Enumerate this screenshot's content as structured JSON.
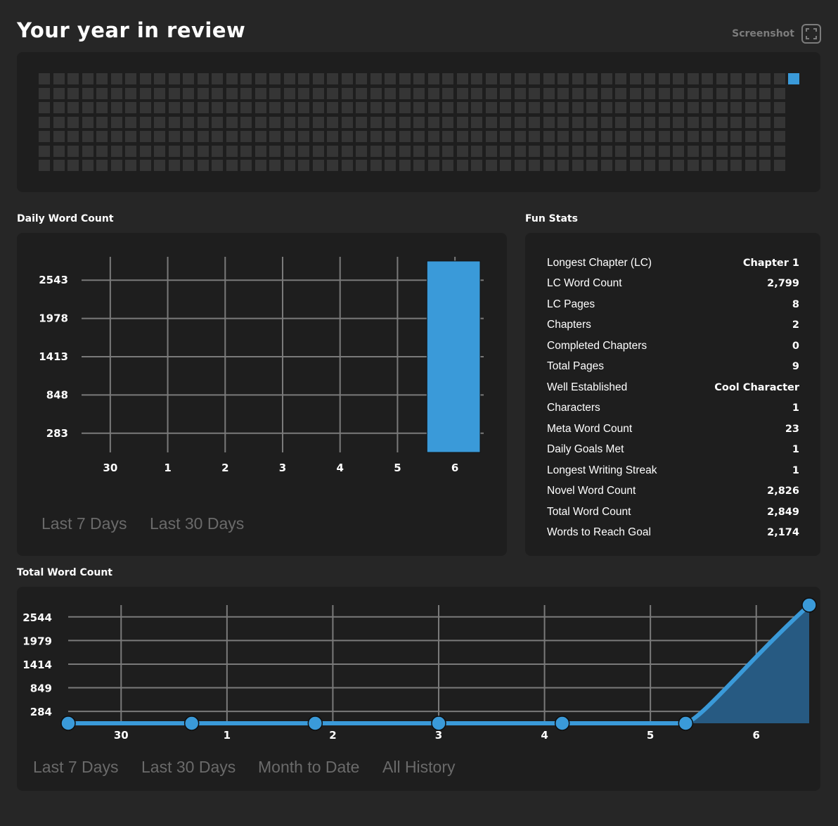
{
  "page": {
    "title": "Your year in review",
    "screenshot_label": "Screenshot",
    "icons": {
      "screenshot": "screenshot-frame-icon"
    }
  },
  "heatmap": {
    "weeks": 53,
    "days_per_week": 7,
    "active_cells": [
      {
        "week": 52,
        "day": 0
      }
    ],
    "colors": {
      "empty": "#353535",
      "active": "#3a9ad9"
    }
  },
  "daily": {
    "label": "Daily Word Count",
    "range_buttons": [
      "Last 7 Days",
      "Last 30 Days"
    ]
  },
  "fun_stats": {
    "label": "Fun Stats",
    "rows": [
      {
        "label": "Longest Chapter (LC)",
        "value": "Chapter 1"
      },
      {
        "label": "LC Word Count",
        "value": "2,799"
      },
      {
        "label": "LC Pages",
        "value": "8"
      },
      {
        "label": "Chapters",
        "value": "2"
      },
      {
        "label": "Completed Chapters",
        "value": "0"
      },
      {
        "label": "Total Pages",
        "value": "9"
      },
      {
        "label": "Well Established",
        "value": "Cool Character"
      },
      {
        "label": "Characters",
        "value": "1"
      },
      {
        "label": "Meta Word Count",
        "value": "23"
      },
      {
        "label": "Daily Goals Met",
        "value": "1"
      },
      {
        "label": "Longest Writing Streak",
        "value": "1"
      },
      {
        "label": "Novel Word Count",
        "value": "2,826"
      },
      {
        "label": "Total Word Count",
        "value": "2,849"
      },
      {
        "label": "Words to Reach Goal",
        "value": "2,174"
      }
    ]
  },
  "total": {
    "label": "Total Word Count",
    "range_buttons": [
      "Last 7 Days",
      "Last 30 Days",
      "Month to Date",
      "All History"
    ]
  },
  "colors": {
    "accent": "#3a9ad9",
    "area_fill": "#275a82",
    "grid": "#7a7a7a",
    "muted": "#6a6a6a"
  },
  "chart_data": [
    {
      "type": "bar",
      "title": "Daily Word Count",
      "categories": [
        "30",
        "1",
        "2",
        "3",
        "4",
        "5",
        "6"
      ],
      "values": [
        0,
        0,
        0,
        0,
        0,
        0,
        2826
      ],
      "yticks": [
        283,
        848,
        1413,
        1978,
        2543
      ],
      "ylim": [
        0,
        2826
      ],
      "grid": true
    },
    {
      "type": "area",
      "title": "Total Word Count",
      "x_labels": [
        "30",
        "1",
        "2",
        "3",
        "4",
        "5",
        "6"
      ],
      "points": [
        0,
        0,
        0,
        0,
        0,
        0,
        2826
      ],
      "yticks": [
        284,
        849,
        1414,
        1979,
        2544
      ],
      "ylim": [
        0,
        2826
      ],
      "grid": true
    }
  ]
}
